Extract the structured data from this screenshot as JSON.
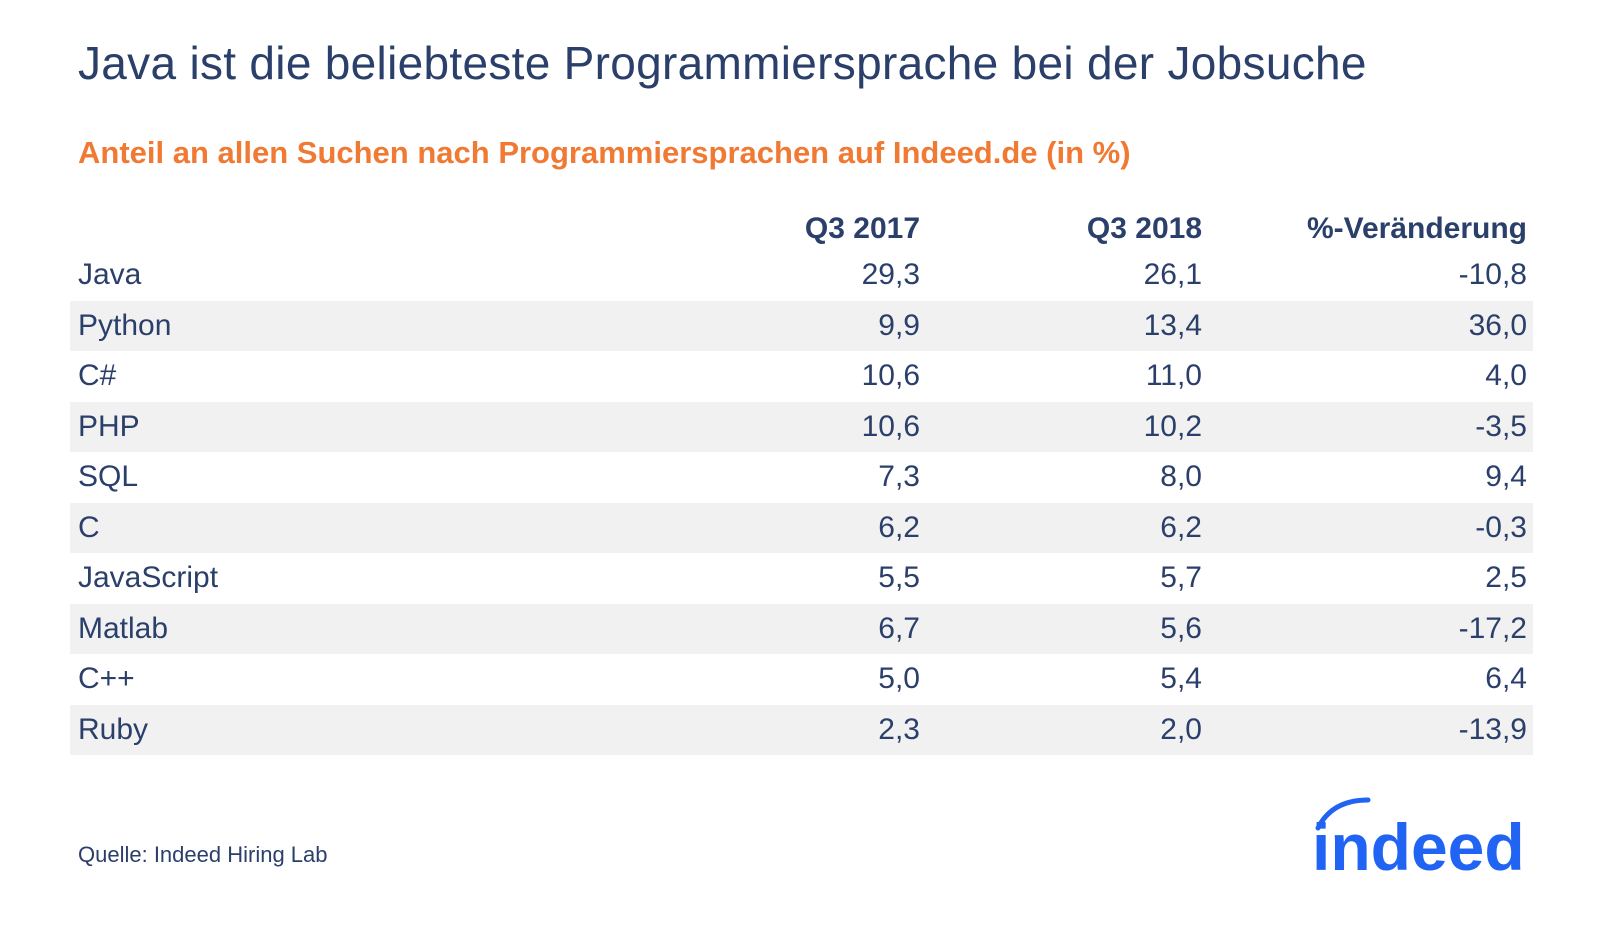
{
  "chart_data": {
    "type": "table",
    "title": "Java ist die beliebteste Programmiersprache bei der Jobsuche",
    "subtitle": "Anteil an allen Suchen nach Programmiersprachen auf Indeed.de (in %)",
    "columns": [
      "",
      "Q3 2017",
      "Q3 2018",
      "%-Veränderung"
    ],
    "rows": [
      {
        "language": "Java",
        "q3_2017": "29,3",
        "q3_2018": "26,1",
        "change": "-10,8"
      },
      {
        "language": "Python",
        "q3_2017": "9,9",
        "q3_2018": "13,4",
        "change": "36,0"
      },
      {
        "language": "C#",
        "q3_2017": "10,6",
        "q3_2018": "11,0",
        "change": "4,0"
      },
      {
        "language": "PHP",
        "q3_2017": "10,6",
        "q3_2018": "10,2",
        "change": "-3,5"
      },
      {
        "language": "SQL",
        "q3_2017": "7,3",
        "q3_2018": "8,0",
        "change": "9,4"
      },
      {
        "language": "C",
        "q3_2017": "6,2",
        "q3_2018": "6,2",
        "change": "-0,3"
      },
      {
        "language": "JavaScript",
        "q3_2017": "5,5",
        "q3_2018": "5,7",
        "change": "2,5"
      },
      {
        "language": "Matlab",
        "q3_2017": "6,7",
        "q3_2018": "5,6",
        "change": "-17,2"
      },
      {
        "language": "C++",
        "q3_2017": "5,0",
        "q3_2018": "5,4",
        "change": "6,4"
      },
      {
        "language": "Ruby",
        "q3_2017": "2,3",
        "q3_2018": "2,0",
        "change": "-13,9"
      }
    ],
    "source": "Quelle: Indeed Hiring Lab"
  },
  "logo": {
    "text": "indeed",
    "color": "#2164f3"
  },
  "colors": {
    "title": "#2b3f6b",
    "subtitle": "#f07a33",
    "row_shade": "#f1f1f1"
  }
}
